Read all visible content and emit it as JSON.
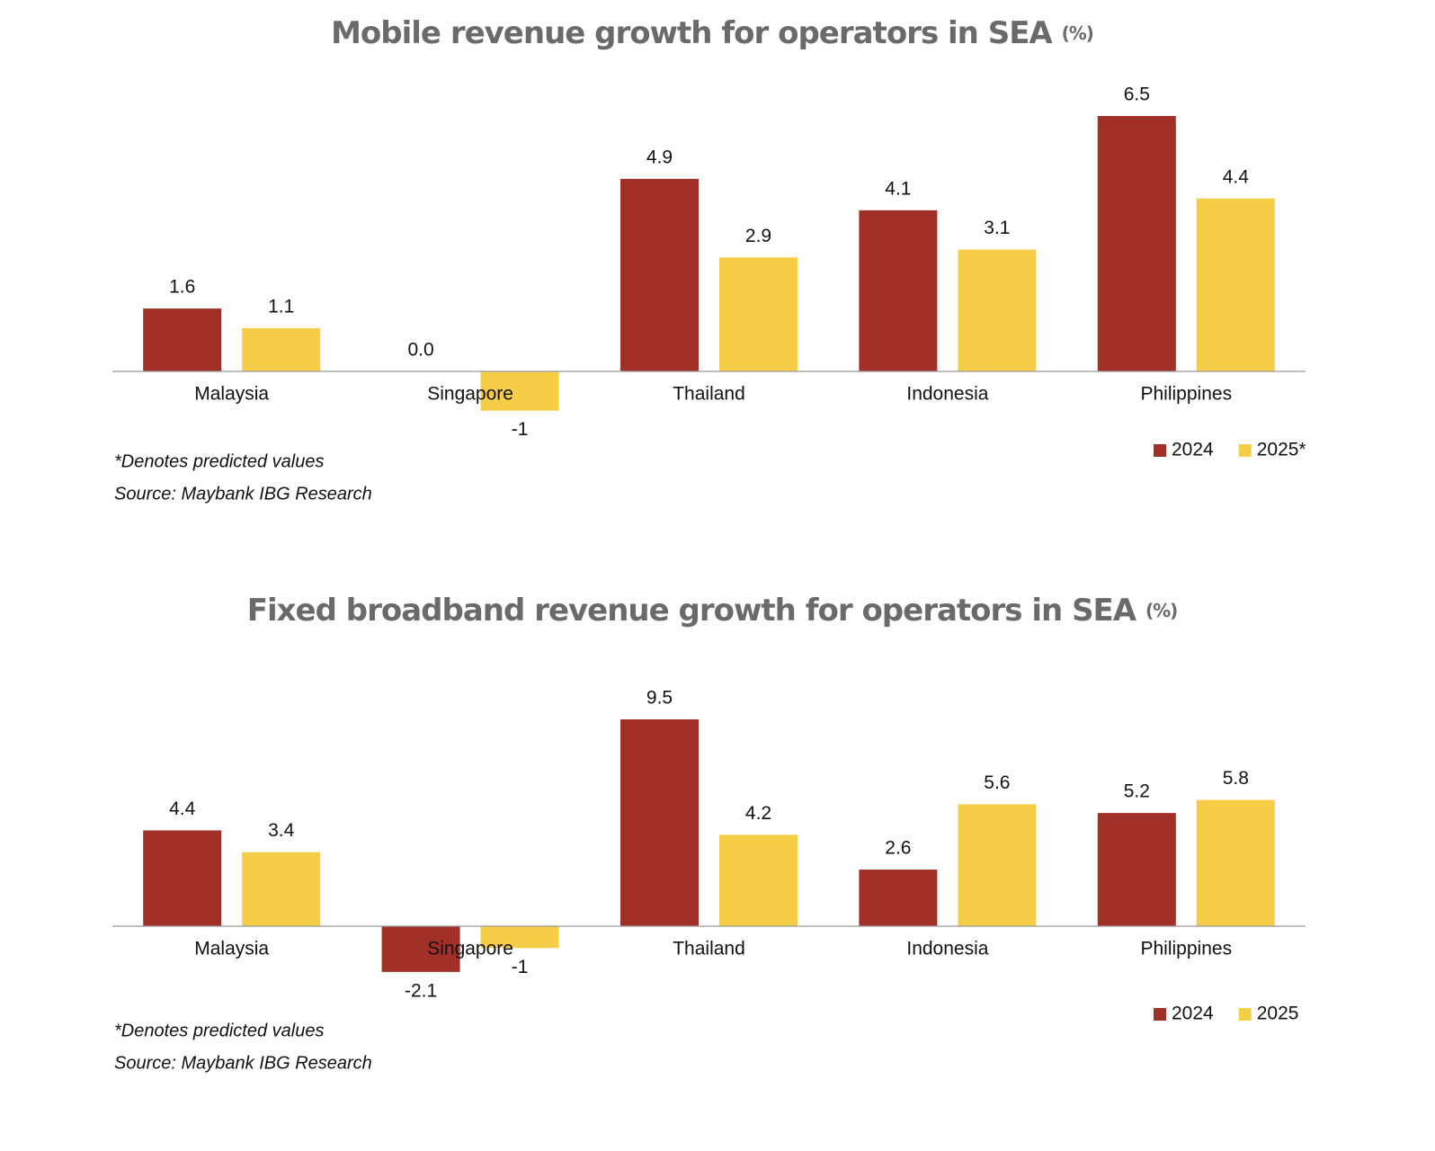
{
  "chart_data": [
    {
      "type": "bar",
      "title": "Mobile revenue growth for operators in SEA",
      "unit": "(%)",
      "categories": [
        "Malaysia",
        "Singapore",
        "Thailand",
        "Indonesia",
        "Philippines"
      ],
      "series": [
        {
          "name": "2024",
          "color": "#a13128",
          "values": [
            1.6,
            0,
            4.9,
            4.1,
            6.5
          ],
          "value_labels": [
            "1.6",
            "0.0",
            "4.9",
            "4.1",
            "6.5"
          ]
        },
        {
          "name": "2025*",
          "color": "#f6cd46",
          "values": [
            1.1,
            -1,
            2.9,
            3.1,
            4.4
          ]
        }
      ],
      "footnotes": [
        "*Denotes predicted values",
        "Source: Maybank IBG Research"
      ]
    },
    {
      "type": "bar",
      "title": "Fixed broadband revenue growth for operators in SEA",
      "unit": "(%)",
      "categories": [
        "Malaysia",
        "Singapore",
        "Thailand",
        "Indonesia",
        "Philippines"
      ],
      "series": [
        {
          "name": "2024",
          "color": "#a13128",
          "values": [
            4.4,
            -2.1,
            9.5,
            2.6,
            5.2
          ]
        },
        {
          "name": "2025",
          "color": "#f6cd46",
          "values": [
            3.4,
            -1,
            4.2,
            5.6,
            5.8
          ]
        }
      ],
      "footnotes": [
        "*Denotes predicted values",
        "Source: Maybank IBG Research"
      ]
    }
  ]
}
